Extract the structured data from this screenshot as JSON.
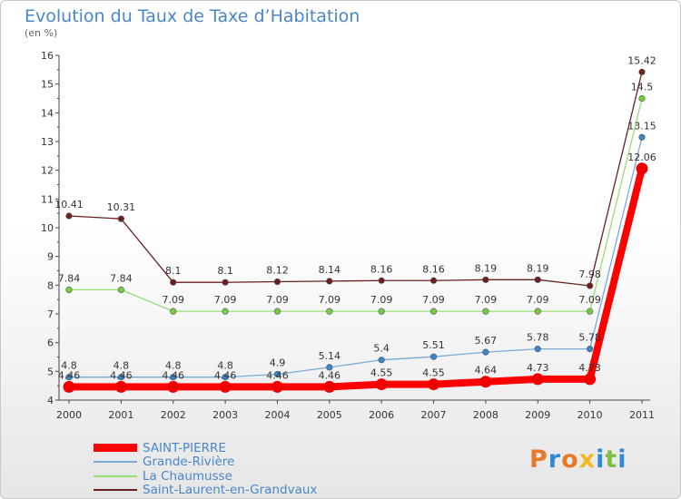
{
  "title": "Evolution du Taux de Taxe d’Habitation",
  "subtitle": "(en %)",
  "logo": {
    "text": "Proxiti",
    "colors": [
      "#e8792b",
      "#2f8ad6",
      "#e8792b",
      "#f2b822",
      "#2f8ad6",
      "#7cc043",
      "#2f8ad6"
    ]
  },
  "chart_data": {
    "type": "line",
    "x": [
      "2000",
      "2001",
      "2002",
      "2003",
      "2004",
      "2005",
      "2006",
      "2007",
      "2008",
      "2009",
      "2010",
      "2011"
    ],
    "ylim": [
      4,
      16
    ],
    "yticks": [
      "4",
      "5",
      "6",
      "7",
      "8",
      "9",
      "10",
      "11",
      "12",
      "13",
      "14",
      "15",
      "16"
    ],
    "grid": false,
    "legend_position": "bottom-left",
    "series": [
      {
        "name": "Saint-Laurent-en-Grandvaux",
        "color": "#6b1f1f",
        "marker": "#6b1f1f",
        "values": [
          10.41,
          10.31,
          8.1,
          8.1,
          8.12,
          8.14,
          8.16,
          8.16,
          8.19,
          8.19,
          7.98,
          15.42
        ],
        "labels": [
          "10.41",
          "10.31",
          "8.1",
          "8.1",
          "8.12",
          "8.14",
          "8.16",
          "8.16",
          "8.19",
          "8.19",
          "7.98",
          "15.42"
        ]
      },
      {
        "name": "La Chaumusse",
        "color": "#99dd77",
        "marker": "#77cc44",
        "values": [
          7.84,
          7.84,
          7.09,
          7.09,
          7.09,
          7.09,
          7.09,
          7.09,
          7.09,
          7.09,
          7.09,
          14.5
        ],
        "labels": [
          "7.84",
          "7.84",
          "7.09",
          "7.09",
          "7.09",
          "7.09",
          "7.09",
          "7.09",
          "7.09",
          "7.09",
          "7.09",
          "14.5"
        ]
      },
      {
        "name": "Grande-Rivière",
        "color": "#7aaad4",
        "marker": "#3b86c8",
        "values": [
          4.8,
          4.8,
          4.8,
          4.8,
          4.9,
          5.14,
          5.4,
          5.51,
          5.67,
          5.78,
          5.78,
          13.15
        ],
        "labels": [
          "4.8",
          "4.8",
          "4.8",
          "4.8",
          "4.9",
          "5.14",
          "5.4",
          "5.51",
          "5.67",
          "5.78",
          "5.78",
          "13.15"
        ]
      },
      {
        "name": "SAINT-PIERRE",
        "color": "#ff0000",
        "marker": "#ee0000",
        "values": [
          4.46,
          4.46,
          4.46,
          4.46,
          4.46,
          4.46,
          4.55,
          4.55,
          4.64,
          4.73,
          4.73,
          12.06
        ],
        "labels": [
          "4.46",
          "4.46",
          "4.46",
          "4.46",
          "4.46",
          "4.46",
          "4.55",
          "4.55",
          "4.64",
          "4.73",
          "4.73",
          "12.06"
        ]
      }
    ],
    "legend": [
      "SAINT-PIERRE",
      "Grande-Rivière",
      "La Chaumusse",
      "Saint-Laurent-en-Grandvaux"
    ]
  }
}
